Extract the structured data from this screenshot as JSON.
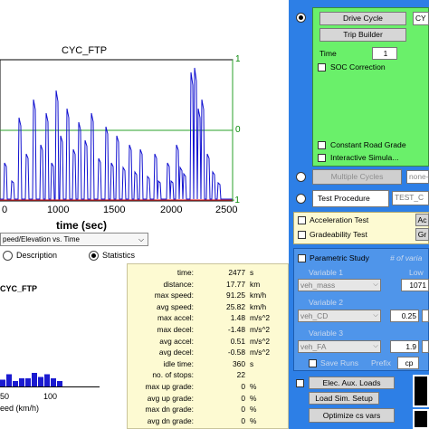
{
  "plot": {
    "title": "CYC_FTP",
    "x_ticks": [
      "1000",
      "1500",
      "2000",
      "2500"
    ],
    "x_partial_tick": "0",
    "x_label": "time (sec)",
    "y_right_ticks": [
      "1",
      "0",
      "-1"
    ],
    "select_value": "peed/Elevation vs. Time",
    "colors": {
      "speed": "#1010d0",
      "elevation": "#2aa02a",
      "red": "#e03030"
    }
  },
  "view_options": {
    "description_label": "Description",
    "statistics_label": "Statistics",
    "selected": "Statistics"
  },
  "histogram": {
    "title": "CYC_FTP",
    "ticks": [
      "50",
      "100"
    ],
    "x_label": "eed (km/h)",
    "bars": [
      0.25,
      0.45,
      0.2,
      0.3,
      0.3,
      0.5,
      0.35,
      0.45,
      0.3,
      0.2
    ]
  },
  "stats": [
    {
      "label": "time:",
      "value": "2477",
      "unit": "s"
    },
    {
      "label": "distance:",
      "value": "17.77",
      "unit": "km"
    },
    {
      "label": "max speed:",
      "value": "91.25",
      "unit": "km/h"
    },
    {
      "label": "avg speed:",
      "value": "25.82",
      "unit": "km/h"
    },
    {
      "label": "max accel:",
      "value": "1.48",
      "unit": "m/s^2"
    },
    {
      "label": "max decel:",
      "value": "-1.48",
      "unit": "m/s^2"
    },
    {
      "label": "avg accel:",
      "value": "0.51",
      "unit": "m/s^2"
    },
    {
      "label": "avg decel:",
      "value": "-0.58",
      "unit": "m/s^2"
    },
    {
      "label": "idle time:",
      "value": "360",
      "unit": "s"
    },
    {
      "label": "no. of stops:",
      "value": "22",
      "unit": ""
    },
    {
      "label": "max up grade:",
      "value": "0",
      "unit": "%"
    },
    {
      "label": "avg up grade:",
      "value": "0",
      "unit": "%"
    },
    {
      "label": "max dn grade:",
      "value": "0",
      "unit": "%"
    },
    {
      "label": "avg dn grade:",
      "value": "0",
      "unit": "%"
    }
  ],
  "panel": {
    "drive_cycle_btn": "Drive Cycle",
    "drive_cycle_field": "CY",
    "trip_builder_btn": "Trip Builder",
    "time_label": "Time",
    "time_value": "1",
    "soc_correction": "SOC Correction",
    "constant_road_grade": "Constant Road Grade",
    "interactive_sim": "Interactive Simula...",
    "multiple_cycles_btn": "Multiple Cycles",
    "multiple_cycles_field": "none-",
    "test_procedure_label": "Test Procedure",
    "test_procedure_field": "TEST_C",
    "acceleration_test": "Acceleration Test",
    "acceleration_btn": "Ac",
    "gradeability_test": "Gradeability Test",
    "gradeability_btn": "Gr",
    "parametric_study": "Parametric Study",
    "runs_hint": "# of varia",
    "variable1": "Variable 1",
    "variable1_value": "veh_mass",
    "low_label": "Low",
    "low_value": "1071",
    "variable2": "Variable 2",
    "variable2_value": "veh_CD",
    "v2_value": "0.25",
    "variable3": "Variable 3",
    "variable3_value": "veh_FA",
    "v3_value": "1.9",
    "save_runs": "Save Runs",
    "prefix_label": "Prefix",
    "prefix_value": "cp",
    "elec_aux_btn": "Elec. Aux. Loads",
    "load_sim_btn": "Load Sim. Setup",
    "optimize_btn": "Optimize cs vars"
  }
}
